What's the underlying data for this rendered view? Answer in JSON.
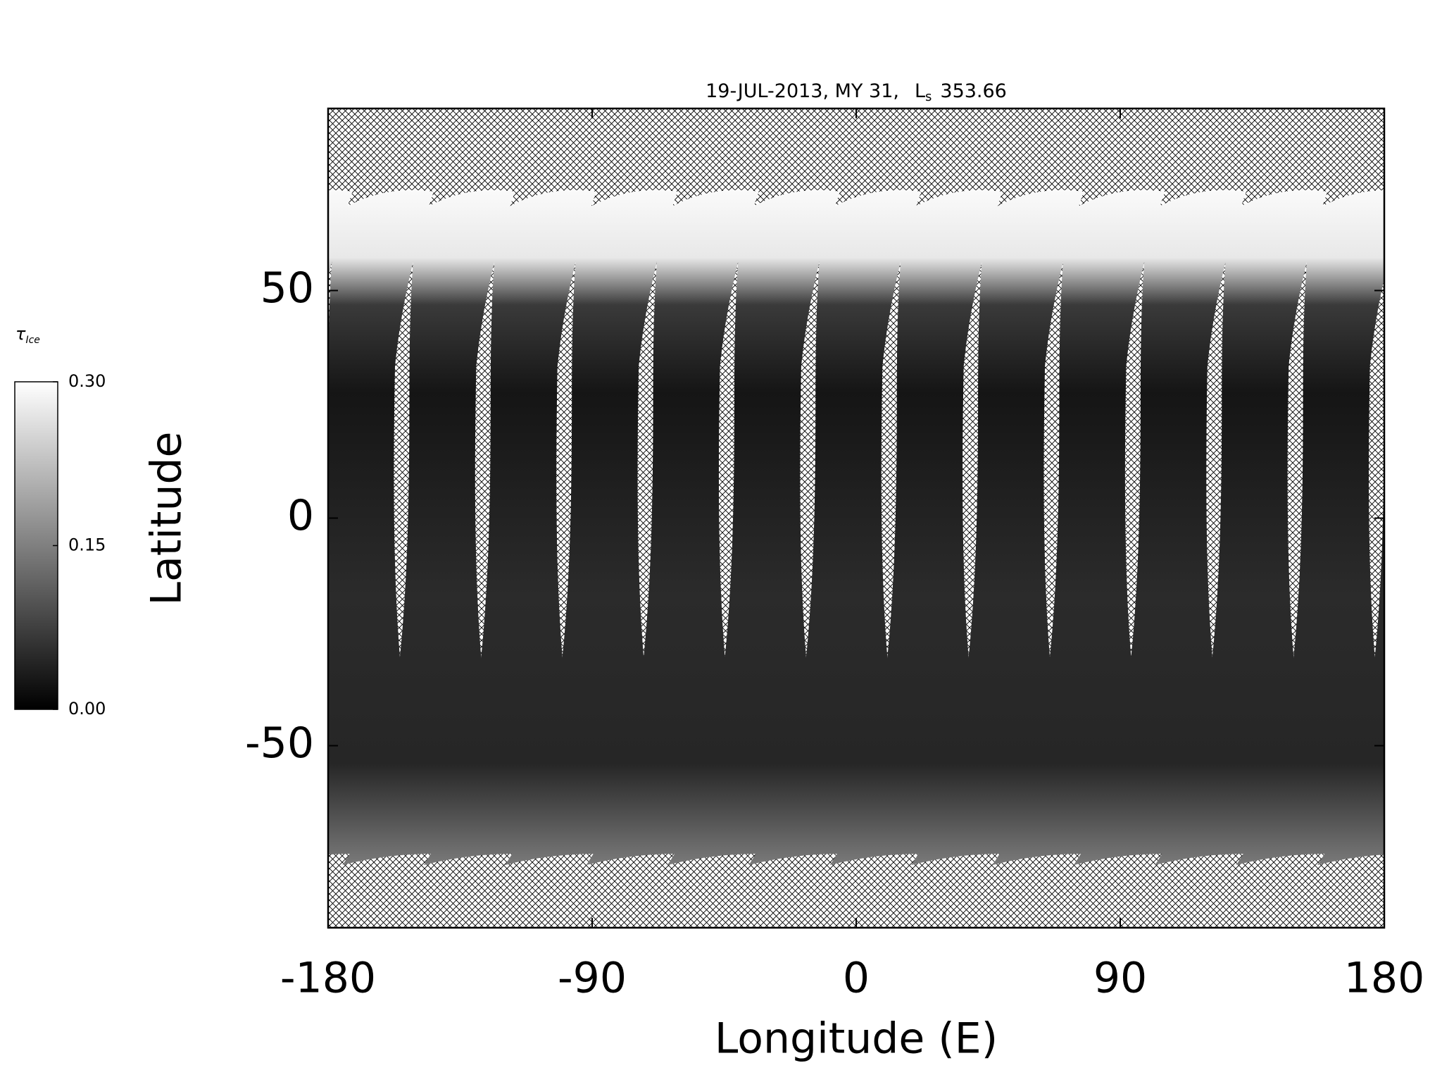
{
  "chart_data": {
    "type": "map",
    "title": "19-JUL-2013, MY 31,",
    "title_ls": {
      "symbol": "L",
      "subscript": "s",
      "value": 353.66
    },
    "x_label": "Longitude (E)",
    "y_label": "Latitude",
    "xlim": [
      -180,
      180
    ],
    "xticks": [
      -180,
      -90,
      0,
      90,
      180
    ],
    "ylim": [
      -90,
      90
    ],
    "yticks": [
      -50,
      0,
      50
    ],
    "colorbar": {
      "label": "τ",
      "label_subscript": "Ice",
      "clim": [
        0,
        0.3
      ],
      "ticks": [
        {
          "value": 0,
          "label": "0.00"
        },
        0.15,
        {
          "value": 0.3,
          "label": "0.30"
        }
      ]
    }
  }
}
